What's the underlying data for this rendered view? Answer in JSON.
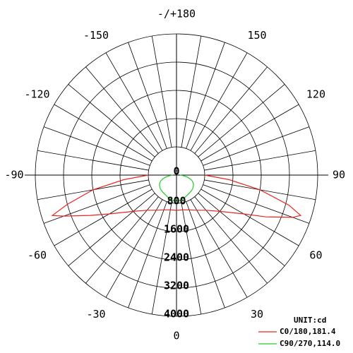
{
  "chart_data": {
    "type": "polar-line",
    "angles": [
      -90,
      -85,
      -80,
      -75,
      -72,
      -70,
      -65,
      -60,
      -50,
      -40,
      -30,
      -20,
      -10,
      0,
      10,
      20,
      30,
      40,
      50,
      60,
      65,
      70,
      72,
      75,
      80,
      85,
      90
    ],
    "series": [
      {
        "name": "C0/180,181.4",
        "color": "#e8261f",
        "values": [
          800,
          1500,
          2400,
          3200,
          3700,
          3400,
          2700,
          2200,
          1600,
          1300,
          1150,
          1050,
          1000,
          1000,
          1000,
          1050,
          1150,
          1300,
          1600,
          2200,
          2800,
          3500,
          3700,
          3300,
          2400,
          1500,
          800
        ]
      },
      {
        "name": "C90/270,114.0",
        "color": "#22cc22",
        "values": [
          100,
          200,
          300,
          400,
          440,
          470,
          520,
          560,
          600,
          620,
          640,
          680,
          720,
          750,
          720,
          680,
          640,
          620,
          600,
          560,
          520,
          470,
          440,
          400,
          300,
          200,
          100
        ]
      }
    ],
    "unit": "UNIT:cd",
    "rlim": [
      0,
      4000
    ],
    "rticks": [
      0,
      800,
      1600,
      2400,
      3200,
      4000
    ],
    "angle_ticks": [
      {
        "value": 180,
        "label": "-/+180"
      },
      -150,
      -120,
      -90,
      -60,
      -30,
      0,
      30,
      60,
      90,
      120,
      150
    ],
    "angle_grid_step": 10
  }
}
